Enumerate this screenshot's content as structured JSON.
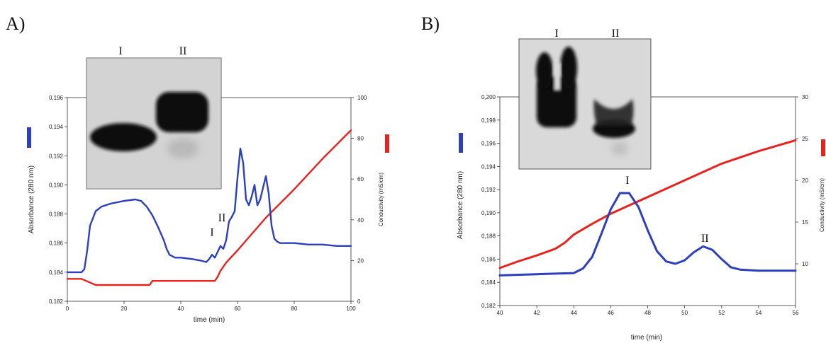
{
  "chart_data": [
    {
      "panel": "A)",
      "type": "line",
      "xlabel": "time (min)",
      "ylabel": "Absorbance (280 nm)",
      "y2label": "Conductivity (mS/cm)",
      "xlim": [
        0,
        100
      ],
      "ylim": [
        0.182,
        0.196
      ],
      "y2lim": [
        0,
        100
      ],
      "xticks": [
        "0",
        "20",
        "40",
        "60",
        "80",
        "100"
      ],
      "yticks": [
        "0,182",
        "0,184",
        "0,186",
        "0,188",
        "0,190",
        "0,192",
        "0,194",
        "0,196"
      ],
      "y2ticks": [
        "0",
        "20",
        "40",
        "60",
        "80",
        "100"
      ],
      "gel_lanes": [
        "I",
        "II"
      ],
      "peak_labels": [
        {
          "text": "I",
          "x": 51,
          "y": 0.1865
        },
        {
          "text": "II",
          "x": 54.5,
          "y": 0.1875
        }
      ],
      "series": [
        {
          "axis": "left",
          "color": "#2b3fbf",
          "x": [
            0,
            5,
            6,
            7,
            8,
            10,
            12,
            15,
            20,
            24,
            26,
            28,
            30,
            32,
            34,
            35,
            36,
            38,
            40,
            44,
            47,
            49,
            50,
            51,
            52,
            53,
            54,
            55,
            56,
            57,
            58,
            59,
            60,
            61,
            62,
            63,
            64,
            65,
            66,
            67,
            68,
            69,
            70,
            71,
            72,
            73,
            74,
            75,
            77,
            80,
            85,
            90,
            95,
            100
          ],
          "y": [
            0.184,
            0.184,
            0.1842,
            0.1855,
            0.1872,
            0.1882,
            0.1885,
            0.1887,
            0.1889,
            0.189,
            0.1889,
            0.1885,
            0.1879,
            0.1871,
            0.1862,
            0.1856,
            0.1852,
            0.185,
            0.185,
            0.1849,
            0.1848,
            0.1847,
            0.1849,
            0.1852,
            0.185,
            0.1854,
            0.1858,
            0.1856,
            0.1862,
            0.1875,
            0.1878,
            0.1882,
            0.1905,
            0.1925,
            0.1915,
            0.189,
            0.1886,
            0.1892,
            0.19,
            0.1886,
            0.189,
            0.1898,
            0.1906,
            0.1894,
            0.1872,
            0.1863,
            0.1861,
            0.186,
            0.186,
            0.186,
            0.1859,
            0.1859,
            0.1858,
            0.1858
          ]
        },
        {
          "axis": "right",
          "color": "#e8231e",
          "x": [
            0,
            5,
            10,
            15,
            20,
            25,
            29,
            30,
            35,
            40,
            45,
            50,
            52,
            53,
            54,
            56,
            60,
            70,
            80,
            90,
            100
          ],
          "y": [
            11,
            11,
            8,
            8,
            8,
            8,
            8,
            10,
            10,
            10,
            10,
            10,
            10,
            12,
            15,
            19,
            25,
            41,
            55,
            70,
            84
          ]
        }
      ]
    },
    {
      "panel": "B)",
      "type": "line",
      "xlabel": "time (min)",
      "ylabel": "Absorbance (280 nm)",
      "y2label": "Conductivity (mS/cm)",
      "xlim": [
        40,
        56
      ],
      "ylim": [
        0.182,
        0.2
      ],
      "y2lim": [
        5,
        30
      ],
      "xticks": [
        "40",
        "42",
        "44",
        "46",
        "48",
        "50",
        "52",
        "54",
        "56"
      ],
      "yticks": [
        "0,182",
        "0,184",
        "0,186",
        "0,188",
        "0,190",
        "0,192",
        "0,194",
        "0,196",
        "0,198",
        "0,200"
      ],
      "y2ticks": [
        "10",
        "15",
        "20",
        "25",
        "30"
      ],
      "gel_lanes": [
        "I",
        "II"
      ],
      "peak_labels": [
        {
          "text": "I",
          "x": 46.9,
          "y": 0.1925
        },
        {
          "text": "II",
          "x": 51.1,
          "y": 0.1875
        }
      ],
      "series": [
        {
          "axis": "left",
          "color": "#2b3fbf",
          "x": [
            40,
            42,
            44,
            44.5,
            45,
            45.5,
            46,
            46.5,
            47,
            47.5,
            48,
            48.5,
            49,
            49.5,
            50,
            50.5,
            51,
            51.5,
            52,
            52.5,
            53,
            54,
            55,
            56
          ],
          "y": [
            0.1846,
            0.1847,
            0.1848,
            0.1852,
            0.1862,
            0.1882,
            0.1903,
            0.1917,
            0.1917,
            0.1905,
            0.1885,
            0.1867,
            0.1858,
            0.1856,
            0.1859,
            0.1866,
            0.1871,
            0.1868,
            0.186,
            0.1853,
            0.1851,
            0.185,
            0.185,
            0.185
          ]
        },
        {
          "axis": "right",
          "color": "#e8231e",
          "x": [
            40,
            41,
            42,
            43,
            43.5,
            44,
            45,
            46,
            47,
            48,
            50,
            52,
            54,
            56
          ],
          "y": [
            9.5,
            10.3,
            11.0,
            11.8,
            12.5,
            13.5,
            14.8,
            16.0,
            17.0,
            18.0,
            20.0,
            22.0,
            23.5,
            24.8
          ]
        }
      ]
    }
  ]
}
